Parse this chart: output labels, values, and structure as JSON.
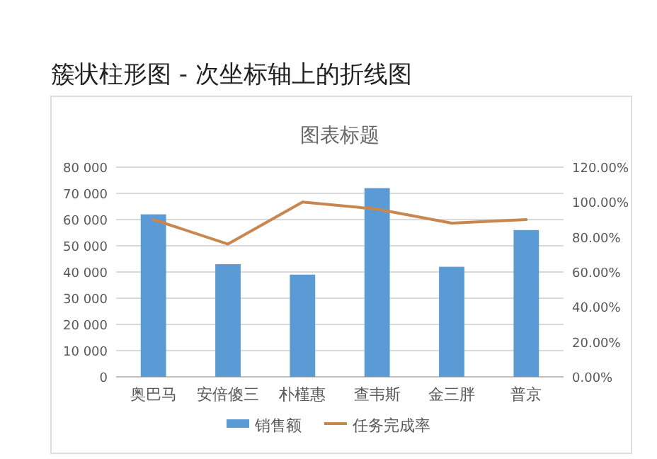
{
  "chart_data": {
    "type": "bar",
    "title": "簇状柱形图 - 次坐标轴上的折线图",
    "subtitle": "图表标题",
    "categories": [
      "奥巴马",
      "安倍傻三",
      "朴槿惠",
      "查韦斯",
      "金三胖",
      "普京"
    ],
    "series": [
      {
        "name": "销售额",
        "color": "#5b9bd5",
        "values": [
          62000,
          43000,
          39000,
          72000,
          42000,
          56000
        ]
      },
      {
        "name": "任务完成率",
        "type": "line",
        "axis": "y2",
        "color": "#c8874f",
        "values": [
          90,
          76,
          100,
          96,
          88,
          90
        ]
      }
    ],
    "ylim": [
      0,
      80000
    ],
    "yticks": [
      0,
      {
        "value": 10000,
        "label": "10 000"
      },
      {
        "value": 20000,
        "label": "20 000"
      },
      {
        "value": 30000,
        "label": "30 000"
      },
      {
        "value": 40000,
        "label": "40 000"
      },
      {
        "value": 50000,
        "label": "50 000"
      },
      {
        "value": 60000,
        "label": "60 000"
      },
      {
        "value": 70000,
        "label": "70 000"
      },
      {
        "value": 80000,
        "label": "80 000"
      }
    ],
    "y2lim": [
      0,
      120
    ],
    "y2ticks": [
      {
        "value": 0,
        "label": "0.00%"
      },
      {
        "value": 20,
        "label": "20.00%"
      },
      {
        "value": 40,
        "label": "40.00%"
      },
      {
        "value": 60,
        "label": "60.00%"
      },
      {
        "value": 80,
        "label": "80.00%"
      },
      {
        "value": 100,
        "label": "100.00%"
      },
      {
        "value": 120,
        "label": "120.00%"
      }
    ],
    "grid": "y",
    "legend": "bottom",
    "marker": "none",
    "line_style": "solid"
  }
}
